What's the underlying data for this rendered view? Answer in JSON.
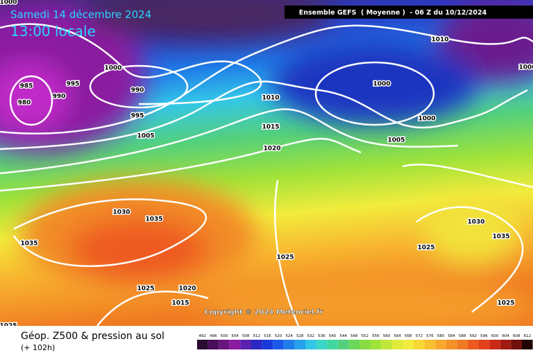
{
  "header": {
    "date": "Samedi 14 décembre 2024",
    "time": "13:00 locale",
    "run": "Ensemble GEFS  ( Moyenne )  - 06 Z du 10/12/2024"
  },
  "isobar_labels": [
    1000,
    985,
    980,
    990,
    995,
    1000,
    990,
    995,
    1005,
    1010,
    1015,
    1020,
    1000,
    1000,
    1005,
    1010,
    1000,
    1030,
    1035,
    1035,
    1025,
    1025,
    1020,
    1015,
    1030,
    1035,
    1025,
    1025,
    1025
  ],
  "copyright": "Copyright © 2024 Meteociel.fr",
  "footer": {
    "title": "Géop. Z500 & pression au sol",
    "lead": "(+ 102h)"
  },
  "scale": [
    492,
    496,
    500,
    504,
    508,
    512,
    516,
    520,
    524,
    528,
    532,
    536,
    540,
    544,
    548,
    552,
    556,
    560,
    564,
    568,
    572,
    576,
    580,
    584,
    588,
    592,
    596,
    600,
    604,
    608,
    612
  ]
}
